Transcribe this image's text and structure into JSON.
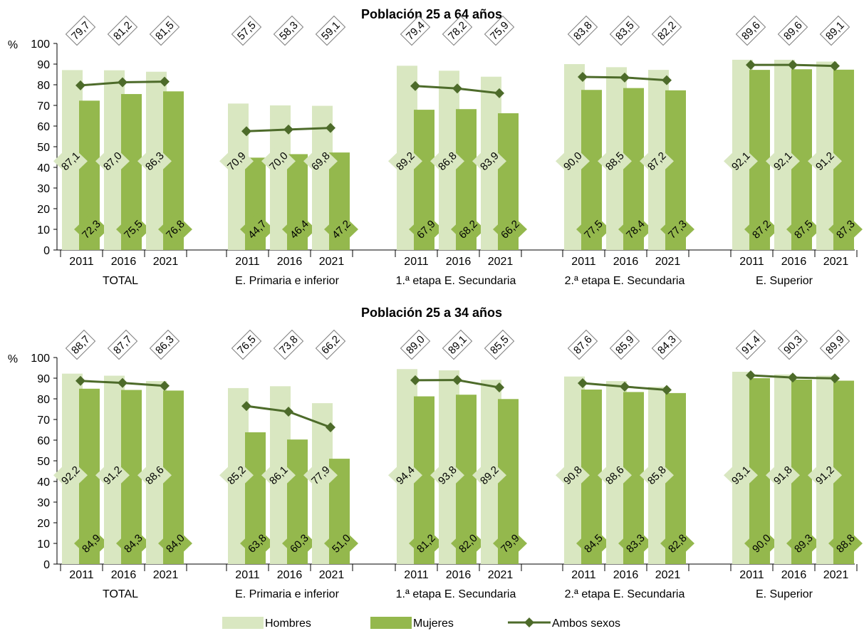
{
  "colors": {
    "hombres": "#d9e7c1",
    "mujeres": "#94b84d",
    "ambos": "#4d6b2a",
    "axis": "#000000",
    "box_border": "#7f7f7f"
  },
  "legend": {
    "hombres": "Hombres",
    "mujeres": "Mujeres",
    "ambos": "Ambos sexos"
  },
  "chart_data": [
    {
      "type": "bar",
      "title": "Población 25 a 64 años",
      "ylabel": "%",
      "ylim": [
        0,
        100
      ],
      "yticks": [
        0,
        10,
        20,
        30,
        40,
        50,
        60,
        70,
        80,
        90,
        100
      ],
      "grid": false,
      "legend_position": "bottom",
      "groups": [
        "TOTAL",
        "E. Primaria e inferior",
        "1.ª etapa E. Secundaria",
        "2.ª etapa E. Secundaria",
        "E. Superior"
      ],
      "years": [
        "2011",
        "2016",
        "2021"
      ],
      "series": [
        {
          "name": "Hombres",
          "kind": "bar",
          "values": [
            [
              87.1,
              87.0,
              86.3
            ],
            [
              70.9,
              70.0,
              69.8
            ],
            [
              89.2,
              86.8,
              83.9
            ],
            [
              90.0,
              88.5,
              87.2
            ],
            [
              92.1,
              92.1,
              91.2
            ]
          ],
          "labels": [
            [
              "87,1",
              "87,0",
              "86,3"
            ],
            [
              "70,9",
              "70,0",
              "69,8"
            ],
            [
              "89,2",
              "86,8",
              "83,9"
            ],
            [
              "90,0",
              "88,5",
              "87,2"
            ],
            [
              "92,1",
              "92,1",
              "91,2"
            ]
          ]
        },
        {
          "name": "Mujeres",
          "kind": "bar",
          "values": [
            [
              72.3,
              75.5,
              76.8
            ],
            [
              44.7,
              46.4,
              47.2
            ],
            [
              67.9,
              68.2,
              66.2
            ],
            [
              77.5,
              78.4,
              77.3
            ],
            [
              87.2,
              87.5,
              87.3
            ]
          ],
          "labels": [
            [
              "72,3",
              "75,5",
              "76,8"
            ],
            [
              "44,7",
              "46,4",
              "47,2"
            ],
            [
              "67,9",
              "68,2",
              "66,2"
            ],
            [
              "77,5",
              "78,4",
              "77,3"
            ],
            [
              "87,2",
              "87,5",
              "87,3"
            ]
          ]
        },
        {
          "name": "Ambos sexos",
          "kind": "line",
          "values": [
            [
              79.7,
              81.2,
              81.5
            ],
            [
              57.5,
              58.3,
              59.1
            ],
            [
              79.4,
              78.2,
              75.9
            ],
            [
              83.8,
              83.5,
              82.2
            ],
            [
              89.6,
              89.6,
              89.1
            ]
          ],
          "labels": [
            [
              "79,7",
              "81,2",
              "81,5"
            ],
            [
              "57,5",
              "58,3",
              "59,1"
            ],
            [
              "79,4",
              "78,2",
              "75,9"
            ],
            [
              "83,8",
              "83,5",
              "82,2"
            ],
            [
              "89,6",
              "89,6",
              "89,1"
            ]
          ]
        }
      ]
    },
    {
      "type": "bar",
      "title": "Población 25 a 34 años",
      "ylabel": "%",
      "ylim": [
        0,
        100
      ],
      "yticks": [
        0,
        10,
        20,
        30,
        40,
        50,
        60,
        70,
        80,
        90,
        100
      ],
      "grid": false,
      "legend_position": "bottom",
      "groups": [
        "TOTAL",
        "E. Primaria e inferior",
        "1.ª etapa E. Secundaria",
        "2.ª etapa E. Secundaria",
        "E. Superior"
      ],
      "years": [
        "2011",
        "2016",
        "2021"
      ],
      "series": [
        {
          "name": "Hombres",
          "kind": "bar",
          "values": [
            [
              92.2,
              91.2,
              88.6
            ],
            [
              85.2,
              86.1,
              77.9
            ],
            [
              94.4,
              93.8,
              89.2
            ],
            [
              90.8,
              88.6,
              85.8
            ],
            [
              93.1,
              91.8,
              91.2
            ]
          ],
          "labels": [
            [
              "92,2",
              "91,2",
              "88,6"
            ],
            [
              "85,2",
              "86,1",
              "77,9"
            ],
            [
              "94,4",
              "93,8",
              "89,2"
            ],
            [
              "90,8",
              "88,6",
              "85,8"
            ],
            [
              "93,1",
              "91,8",
              "91,2"
            ]
          ]
        },
        {
          "name": "Mujeres",
          "kind": "bar",
          "values": [
            [
              84.9,
              84.3,
              84.0
            ],
            [
              63.8,
              60.3,
              51.0
            ],
            [
              81.2,
              82.0,
              79.9
            ],
            [
              84.5,
              83.3,
              82.8
            ],
            [
              90.0,
              89.3,
              88.8
            ]
          ],
          "labels": [
            [
              "84,9",
              "84,3",
              "84,0"
            ],
            [
              "63,8",
              "60,3",
              "51,0"
            ],
            [
              "81,2",
              "82,0",
              "79,9"
            ],
            [
              "84,5",
              "83,3",
              "82,8"
            ],
            [
              "90,0",
              "89,3",
              "88,8"
            ]
          ]
        },
        {
          "name": "Ambos sexos",
          "kind": "line",
          "values": [
            [
              88.7,
              87.7,
              86.3
            ],
            [
              76.5,
              73.8,
              66.2
            ],
            [
              89.0,
              89.1,
              85.5
            ],
            [
              87.6,
              85.9,
              84.3
            ],
            [
              91.4,
              90.3,
              89.9
            ]
          ],
          "labels": [
            [
              "88,7",
              "87,7",
              "86,3"
            ],
            [
              "76,5",
              "73,8",
              "66,2"
            ],
            [
              "89,0",
              "89,1",
              "85,5"
            ],
            [
              "87,6",
              "85,9",
              "84,3"
            ],
            [
              "91,4",
              "90,3",
              "89,9"
            ]
          ]
        }
      ]
    }
  ]
}
